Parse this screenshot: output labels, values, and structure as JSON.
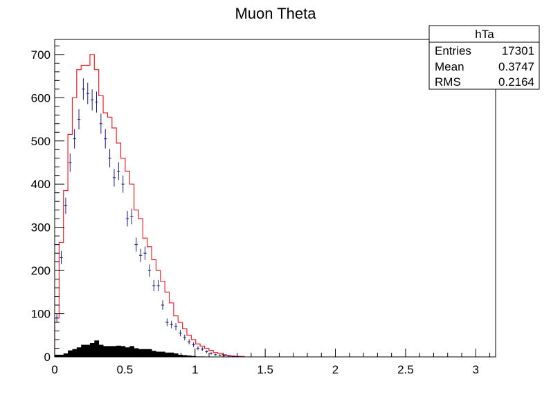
{
  "chart_data": {
    "type": "histogram",
    "title": "Muon Theta",
    "xlabel": "",
    "ylabel": "",
    "xlim": [
      0,
      3.1416
    ],
    "ylim": [
      0,
      735
    ],
    "xbin_width": 0.0314,
    "x_ticks": [
      "0",
      "0.5",
      "1",
      "1.5",
      "2",
      "2.5",
      "3"
    ],
    "y_ticks": [
      "0",
      "100",
      "200",
      "300",
      "400",
      "500",
      "600",
      "700"
    ],
    "series": [
      {
        "style": "step",
        "color": "#e8202a",
        "values": [
          90,
          265,
          385,
          515,
          600,
          665,
          675,
          675,
          700,
          665,
          605,
          565,
          555,
          530,
          495,
          460,
          430,
          400,
          340,
          320,
          275,
          255,
          225,
          200,
          175,
          150,
          125,
          95,
          80,
          65,
          50,
          40,
          30,
          25,
          20,
          15,
          10,
          8,
          5,
          3,
          2,
          1,
          1
        ]
      },
      {
        "style": "points",
        "color": "#1a1a7a",
        "values": [
          90,
          230,
          350,
          450,
          505,
          550,
          620,
          610,
          595,
          590,
          540,
          505,
          460,
          415,
          430,
          400,
          320,
          325,
          260,
          235,
          240,
          200,
          165,
          165,
          120,
          80,
          75,
          70,
          55,
          45,
          35,
          28,
          20,
          18,
          12,
          8,
          5,
          4,
          3,
          2,
          1,
          1,
          0
        ]
      },
      {
        "style": "filled",
        "color": "#000000",
        "values": [
          5,
          5,
          8,
          15,
          18,
          22,
          28,
          28,
          32,
          38,
          28,
          25,
          25,
          25,
          26,
          25,
          22,
          25,
          20,
          18,
          18,
          18,
          14,
          12,
          12,
          10,
          10,
          8,
          5,
          4,
          3,
          2,
          1,
          1,
          0,
          0,
          0,
          0,
          0,
          0,
          0,
          0,
          0
        ]
      }
    ],
    "stats_box": {
      "name": "hTa",
      "rows": [
        {
          "label": "Entries",
          "value": "17301"
        },
        {
          "label": "Mean",
          "value": "0.3747"
        },
        {
          "label": "RMS",
          "value": "0.2164"
        }
      ]
    }
  }
}
